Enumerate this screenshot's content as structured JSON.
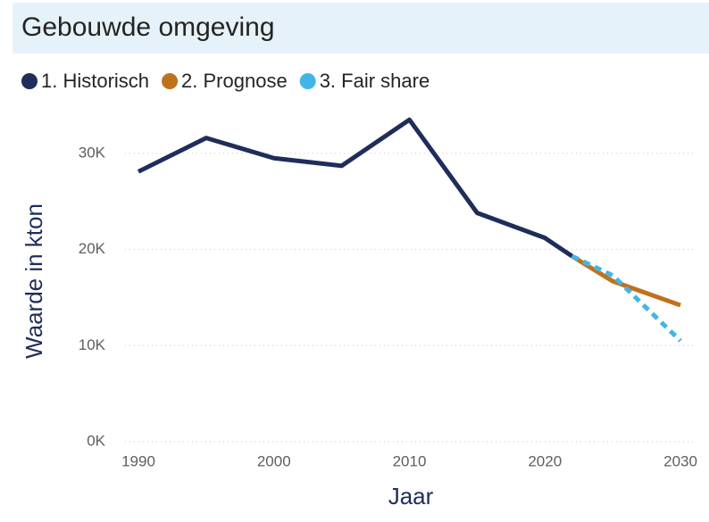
{
  "chart_data": {
    "type": "line",
    "title": "Gebouwde omgeving",
    "x_label": "Jaar",
    "y_label": "Waarde in kton",
    "series": [
      {
        "name": "1. Historisch",
        "color": "#1f2d5a",
        "style": "solid",
        "x": [
          1990,
          1995,
          2000,
          2005,
          2010,
          2015,
          2020,
          2022
        ],
        "values": [
          28100,
          31600,
          29500,
          28700,
          33500,
          23800,
          21200,
          19300
        ]
      },
      {
        "name": "2. Prognose",
        "color": "#c0711c",
        "style": "solid",
        "x": [
          2022,
          2025,
          2030
        ],
        "values": [
          19300,
          16700,
          14200
        ]
      },
      {
        "name": "3. Fair share",
        "color": "#41b6e6",
        "style": "dotted",
        "x": [
          2022,
          2025,
          2030
        ],
        "values": [
          19300,
          17300,
          10500
        ]
      }
    ],
    "xlim": [
      1988,
      2031
    ],
    "xticks": [
      1990,
      2000,
      2010,
      2020,
      2030
    ],
    "ylim": [
      0,
      35000
    ],
    "yticks": [
      {
        "value": 0,
        "label": "0K"
      },
      {
        "value": 10000,
        "label": "10K"
      },
      {
        "value": 20000,
        "label": "20K"
      },
      {
        "value": 30000,
        "label": "30K"
      }
    ],
    "grid": true
  }
}
